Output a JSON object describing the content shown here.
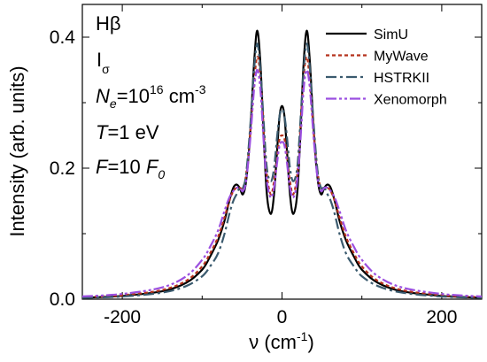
{
  "chart_data": {
    "type": "line",
    "title": "",
    "xlabel": "ν (cm",
    "xlabel_sup": "-1",
    "xlabel_end": ")",
    "ylabel": "Intensity (arb. units)",
    "xlim": [
      -250,
      250
    ],
    "ylim": [
      0,
      0.45
    ],
    "x_ticks": [
      -200,
      0,
      200
    ],
    "x_tick_labels": [
      "-200",
      "0",
      "200"
    ],
    "y_ticks": [
      0.0,
      0.2,
      0.4
    ],
    "y_tick_labels": [
      "0.0",
      "0.2",
      "0.4"
    ],
    "legend_position": "top-right",
    "annotations": {
      "line1": "Hβ",
      "line2_main": "I",
      "line2_sub": "σ",
      "line3_var": "N",
      "line3_sub": "e",
      "line3_eq": "=10",
      "line3_sup": "16",
      "line3_unit": " cm",
      "line3_unit_sup": "-3",
      "line4_var": "T",
      "line4_rest": "=1 eV",
      "line5_var": "F",
      "line5_eq": "=10 ",
      "line5_var2": "F",
      "line5_sub": "0"
    },
    "x": [
      -250,
      -200,
      -150,
      -120,
      -100,
      -90,
      -80,
      -72,
      -66,
      -61,
      -57,
      -53,
      -49,
      -45,
      -40,
      -35,
      -31,
      -27,
      -23,
      -19,
      -14,
      -10,
      -6,
      -3,
      0,
      3,
      6,
      10,
      14,
      19,
      23,
      27,
      31,
      35,
      40,
      45,
      49,
      53,
      57,
      61,
      66,
      72,
      80,
      90,
      100,
      120,
      150,
      200,
      250
    ],
    "series": [
      {
        "name": "SimU",
        "color": "#000000",
        "dash": "solid",
        "values": [
          0.002,
          0.005,
          0.012,
          0.025,
          0.045,
          0.065,
          0.09,
          0.12,
          0.15,
          0.17,
          0.175,
          0.17,
          0.16,
          0.18,
          0.25,
          0.36,
          0.41,
          0.36,
          0.25,
          0.16,
          0.13,
          0.16,
          0.23,
          0.28,
          0.295,
          0.28,
          0.23,
          0.16,
          0.13,
          0.16,
          0.25,
          0.36,
          0.41,
          0.36,
          0.25,
          0.18,
          0.16,
          0.17,
          0.175,
          0.17,
          0.15,
          0.12,
          0.09,
          0.065,
          0.045,
          0.025,
          0.012,
          0.005,
          0.002
        ]
      },
      {
        "name": "MyWave",
        "color": "#b5321c",
        "dash": "4,3",
        "values": [
          0.003,
          0.006,
          0.014,
          0.028,
          0.05,
          0.07,
          0.095,
          0.125,
          0.15,
          0.165,
          0.17,
          0.17,
          0.17,
          0.19,
          0.25,
          0.33,
          0.37,
          0.34,
          0.26,
          0.19,
          0.16,
          0.18,
          0.22,
          0.245,
          0.25,
          0.245,
          0.22,
          0.18,
          0.16,
          0.19,
          0.26,
          0.34,
          0.37,
          0.33,
          0.25,
          0.19,
          0.17,
          0.17,
          0.17,
          0.165,
          0.15,
          0.125,
          0.095,
          0.07,
          0.05,
          0.028,
          0.014,
          0.006,
          0.003
        ]
      },
      {
        "name": "HSTRKII",
        "color": "#3a5a6e",
        "dash": "12,4,3,4",
        "values": [
          0.002,
          0.004,
          0.01,
          0.02,
          0.035,
          0.05,
          0.07,
          0.1,
          0.13,
          0.15,
          0.16,
          0.17,
          0.17,
          0.19,
          0.26,
          0.35,
          0.39,
          0.35,
          0.27,
          0.2,
          0.18,
          0.2,
          0.25,
          0.28,
          0.29,
          0.28,
          0.25,
          0.2,
          0.18,
          0.2,
          0.27,
          0.35,
          0.39,
          0.35,
          0.26,
          0.19,
          0.17,
          0.17,
          0.16,
          0.15,
          0.13,
          0.1,
          0.07,
          0.05,
          0.035,
          0.02,
          0.01,
          0.004,
          0.002
        ]
      },
      {
        "name": "Xenomorph",
        "color": "#9b4fe0",
        "dash": "12,3,3,3,3,3",
        "values": [
          0.004,
          0.008,
          0.018,
          0.035,
          0.06,
          0.08,
          0.105,
          0.135,
          0.155,
          0.165,
          0.17,
          0.17,
          0.165,
          0.18,
          0.24,
          0.32,
          0.35,
          0.32,
          0.24,
          0.18,
          0.155,
          0.17,
          0.21,
          0.235,
          0.24,
          0.235,
          0.21,
          0.17,
          0.155,
          0.18,
          0.24,
          0.32,
          0.35,
          0.32,
          0.24,
          0.18,
          0.165,
          0.17,
          0.17,
          0.165,
          0.155,
          0.135,
          0.105,
          0.08,
          0.06,
          0.035,
          0.018,
          0.008,
          0.004
        ]
      }
    ]
  }
}
